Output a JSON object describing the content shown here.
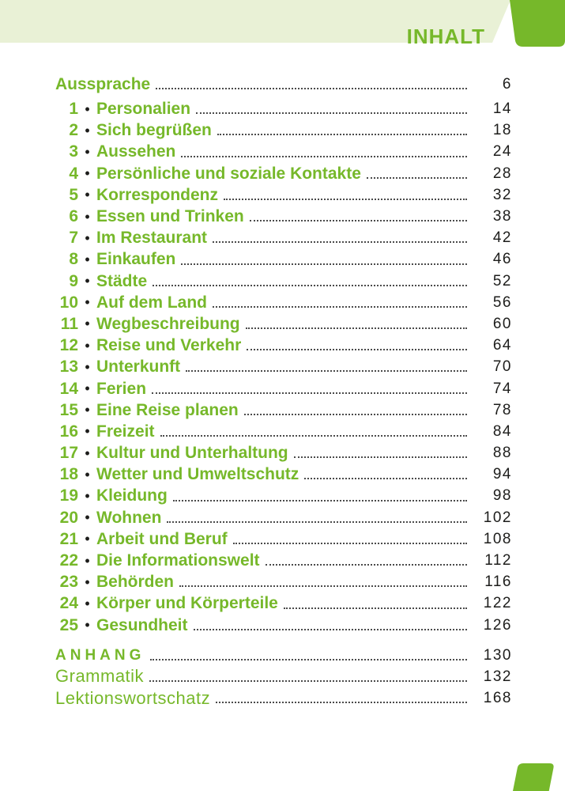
{
  "header": {
    "title": "INHALT"
  },
  "colors": {
    "accent_green": "#76b82a",
    "header_band": "#e9f1d6",
    "text_dark": "#1d1d1b",
    "leader_dots": "#4b4b4b"
  },
  "toc": {
    "bullet_glyph": "•",
    "entries": [
      {
        "number": "",
        "title": "Aussprache",
        "page": "6",
        "style": "section-bold"
      },
      {
        "number": "1",
        "title": "Personalien",
        "page": "14",
        "style": "chapter"
      },
      {
        "number": "2",
        "title": "Sich begrüßen",
        "page": "18",
        "style": "chapter"
      },
      {
        "number": "3",
        "title": "Aussehen",
        "page": "24",
        "style": "chapter"
      },
      {
        "number": "4",
        "title": "Persönliche und soziale Kontakte",
        "page": "28",
        "style": "chapter"
      },
      {
        "number": "5",
        "title": "Korrespondenz",
        "page": "32",
        "style": "chapter"
      },
      {
        "number": "6",
        "title": "Essen und Trinken",
        "page": "38",
        "style": "chapter"
      },
      {
        "number": "7",
        "title": "Im Restaurant",
        "page": "42",
        "style": "chapter"
      },
      {
        "number": "8",
        "title": "Einkaufen",
        "page": "46",
        "style": "chapter"
      },
      {
        "number": "9",
        "title": "Städte",
        "page": "52",
        "style": "chapter"
      },
      {
        "number": "10",
        "title": "Auf dem Land",
        "page": "56",
        "style": "chapter"
      },
      {
        "number": "11",
        "title": "Wegbeschreibung",
        "page": "60",
        "style": "chapter"
      },
      {
        "number": "12",
        "title": "Reise und Verkehr",
        "page": "64",
        "style": "chapter"
      },
      {
        "number": "13",
        "title": "Unterkunft",
        "page": "70",
        "style": "chapter"
      },
      {
        "number": "14",
        "title": "Ferien",
        "page": "74",
        "style": "chapter"
      },
      {
        "number": "15",
        "title": "Eine Reise planen",
        "page": "78",
        "style": "chapter"
      },
      {
        "number": "16",
        "title": "Freizeit",
        "page": "84",
        "style": "chapter"
      },
      {
        "number": "17",
        "title": "Kultur und Unterhaltung",
        "page": "88",
        "style": "chapter"
      },
      {
        "number": "18",
        "title": "Wetter und Umweltschutz",
        "page": "94",
        "style": "chapter"
      },
      {
        "number": "19",
        "title": "Kleidung",
        "page": "98",
        "style": "chapter"
      },
      {
        "number": "20",
        "title": "Wohnen",
        "page": "102",
        "style": "chapter"
      },
      {
        "number": "21",
        "title": "Arbeit und Beruf",
        "page": "108",
        "style": "chapter"
      },
      {
        "number": "22",
        "title": "Die Informationswelt",
        "page": "112",
        "style": "chapter"
      },
      {
        "number": "23",
        "title": "Behörden",
        "page": "116",
        "style": "chapter"
      },
      {
        "number": "24",
        "title": "Körper und Körperteile",
        "page": "122",
        "style": "chapter"
      },
      {
        "number": "25",
        "title": "Gesundheit",
        "page": "126",
        "style": "chapter"
      },
      {
        "number": "",
        "title": "ANHANG",
        "page": "130",
        "style": "appendix-header"
      },
      {
        "number": "",
        "title": "Grammatik",
        "page": "132",
        "style": "appendix-light"
      },
      {
        "number": "",
        "title": "Lektionswortschatz",
        "page": "168",
        "style": "appendix-light"
      }
    ]
  }
}
